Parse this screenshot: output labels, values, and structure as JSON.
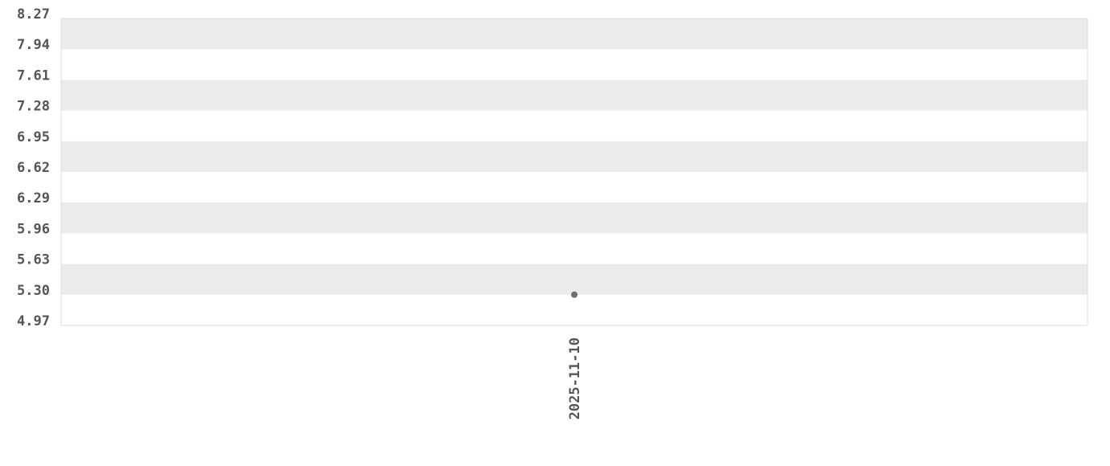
{
  "chart_data": {
    "type": "scatter",
    "title": "",
    "xlabel": "",
    "ylabel": "",
    "x": [
      "2025-11-10"
    ],
    "y": [
      5.3
    ],
    "x_tick_labels": [
      "2025-11-10"
    ],
    "y_tick_labels": [
      "8.27",
      "7.94",
      "7.61",
      "7.28",
      "6.95",
      "6.62",
      "6.29",
      "5.96",
      "5.63",
      "5.30",
      "4.97"
    ],
    "ylim": [
      4.97,
      8.27
    ],
    "grid": "alternating horizontal bands",
    "legend": "none",
    "colors": {
      "band": "#ebebeb",
      "point": "#6e6e6e",
      "text": "#555555",
      "border": "#dddddd"
    }
  }
}
